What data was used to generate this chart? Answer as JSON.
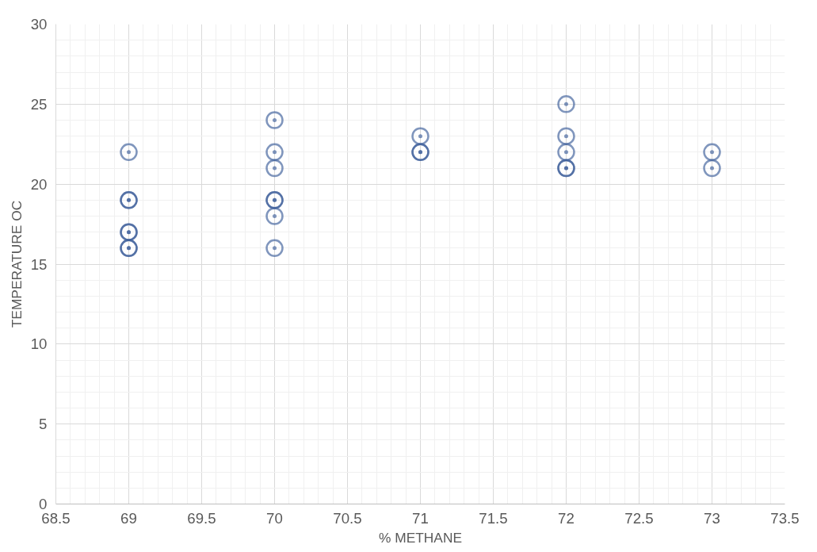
{
  "chart_data": {
    "type": "scatter",
    "xlabel": "% METHANE",
    "ylabel": "TEMPERATURE OC",
    "x": [
      69,
      69,
      69,
      69,
      69,
      69,
      69,
      70,
      70,
      70,
      70,
      70,
      70,
      70,
      71,
      71,
      71,
      72,
      72,
      72,
      72,
      72,
      73,
      73
    ],
    "values": [
      22,
      19,
      19,
      17,
      17,
      16,
      16,
      24,
      22,
      21,
      19,
      19,
      18,
      16,
      23,
      22,
      22,
      25,
      23,
      22,
      21,
      21,
      22,
      21
    ],
    "color": "#3c5d99",
    "marker": "circle",
    "grid": true,
    "xlim": [
      68.5,
      73.5
    ],
    "xticks": [
      68.5,
      69,
      69.5,
      70,
      70.5,
      71,
      71.5,
      72,
      72.5,
      73,
      73.5
    ],
    "ylim": [
      0,
      30
    ],
    "yticks": [
      0,
      5,
      10,
      15,
      20,
      25,
      30
    ]
  }
}
